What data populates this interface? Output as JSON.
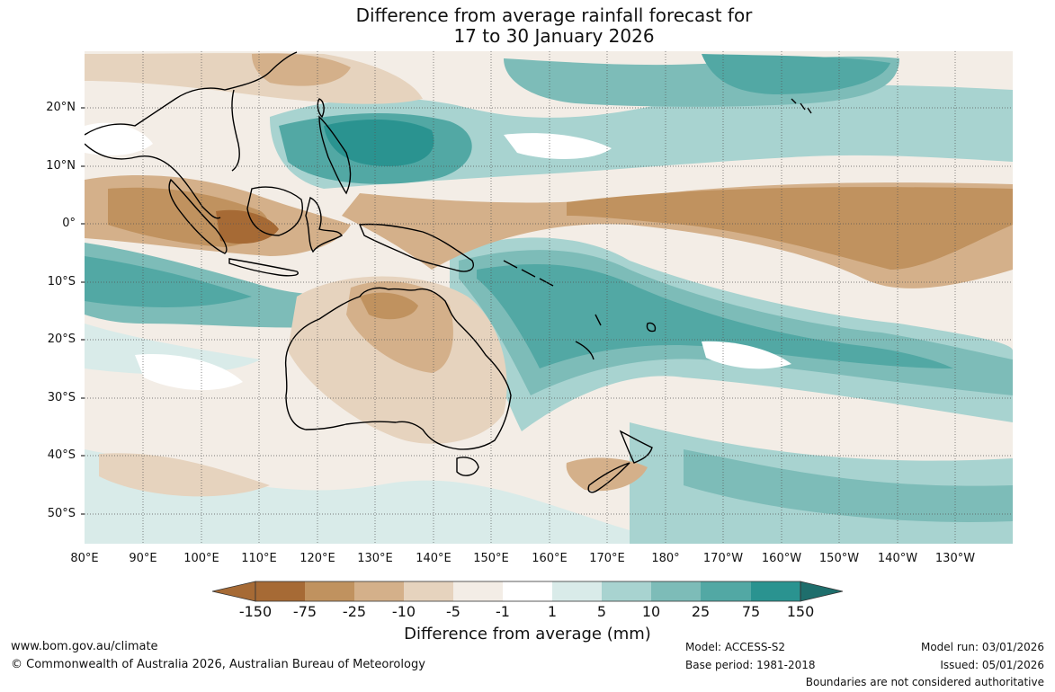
{
  "title": {
    "line1": "Difference from average rainfall forecast for",
    "line2": "17 to 30 January 2026"
  },
  "map": {
    "lat_labels": [
      "20°N",
      "10°N",
      "0°",
      "10°S",
      "20°S",
      "30°S",
      "40°S",
      "50°S"
    ],
    "lon_labels": [
      "80°E",
      "90°E",
      "100°E",
      "110°E",
      "120°E",
      "130°E",
      "140°E",
      "150°E",
      "160°E",
      "170°E",
      "180°",
      "170°W",
      "160°W",
      "150°W",
      "140°W",
      "130°W"
    ],
    "colors": {
      "dry_strong": "#a66a35",
      "dry_high": "#c0925f",
      "dry_mid": "#d4b08a",
      "dry_low": "#e6d3be",
      "dry_min": "#f3ede6",
      "neutral": "#ffffff",
      "wet_min": "#d9ebe9",
      "wet_low": "#a8d3d0",
      "wet_mid": "#7dbcb8",
      "wet_high": "#52a8a4",
      "wet_strong": "#2a9390",
      "wet_max": "#1e6e6c",
      "land_outline": "#000000"
    }
  },
  "legend": {
    "ticks": [
      "-150",
      "-75",
      "-25",
      "-10",
      "-5",
      "-1",
      "1",
      "5",
      "10",
      "25",
      "75",
      "150"
    ],
    "label": "Difference from average (mm)"
  },
  "footer": {
    "website": "www.bom.gov.au/climate",
    "copyright": "© Commonwealth of Australia 2026, Australian Bureau of Meteorology",
    "model": "Model: ACCESS-S2",
    "base_period": "Base period: 1981-2018",
    "model_run": "Model run: 03/01/2026",
    "issued": "Issued: 05/01/2026",
    "disclaimer": "Boundaries are not considered authoritative"
  }
}
